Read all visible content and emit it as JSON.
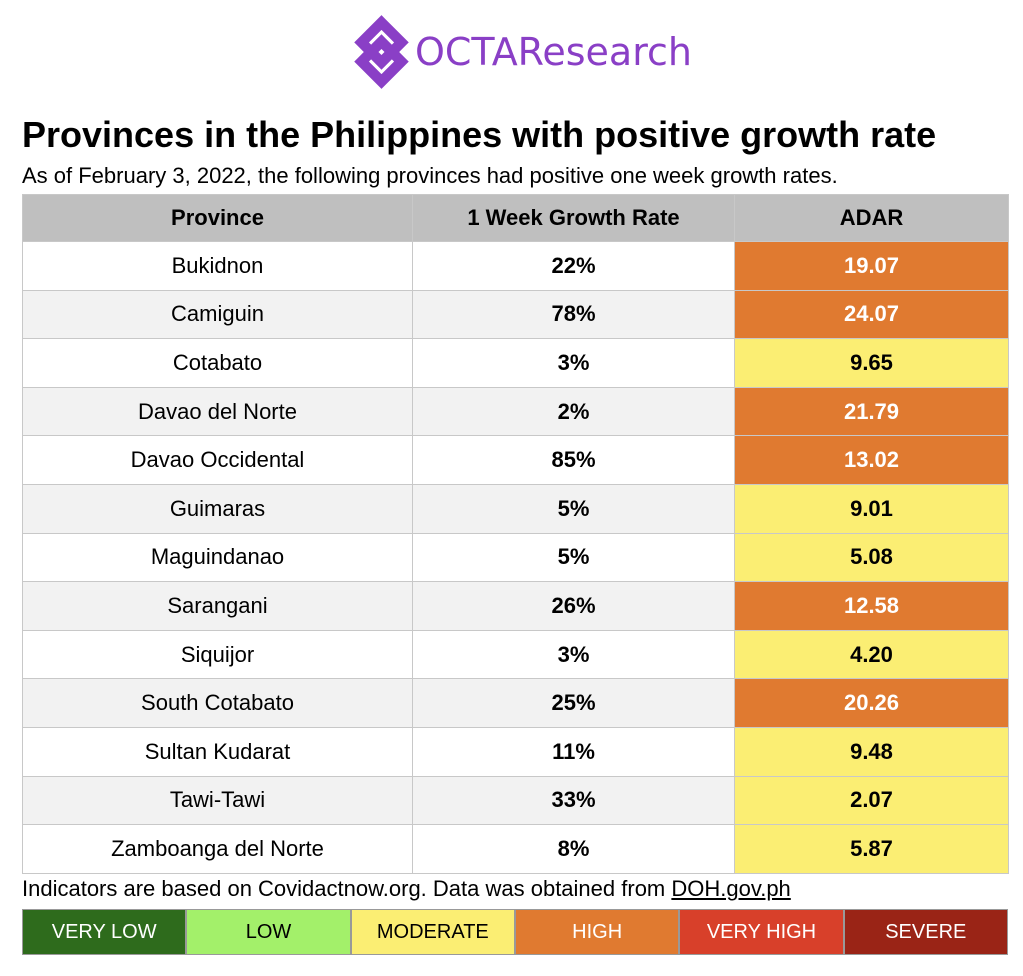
{
  "logo": {
    "text": "OCTAResearch"
  },
  "title": "Provinces in the Philippines with positive growth rate",
  "subtitle": "As of February 3, 2022, the following provinces had positive one week growth rates.",
  "colors": {
    "high": "#e07a30",
    "moderate": "#fbee73",
    "brand": "#8a3fc6"
  },
  "chart_data": {
    "type": "table",
    "columns": [
      "Province",
      "1 Week Growth Rate",
      "ADAR"
    ],
    "rows": [
      {
        "province": "Bukidnon",
        "growth": "22%",
        "adar": "19.07",
        "level": "high"
      },
      {
        "province": "Camiguin",
        "growth": "78%",
        "adar": "24.07",
        "level": "high"
      },
      {
        "province": "Cotabato",
        "growth": "3%",
        "adar": "9.65",
        "level": "moderate"
      },
      {
        "province": "Davao del Norte",
        "growth": "2%",
        "adar": "21.79",
        "level": "high"
      },
      {
        "province": "Davao Occidental",
        "growth": "85%",
        "adar": "13.02",
        "level": "high"
      },
      {
        "province": "Guimaras",
        "growth": "5%",
        "adar": "9.01",
        "level": "moderate"
      },
      {
        "province": "Maguindanao",
        "growth": "5%",
        "adar": "5.08",
        "level": "moderate"
      },
      {
        "province": "Sarangani",
        "growth": "26%",
        "adar": "12.58",
        "level": "high"
      },
      {
        "province": "Siquijor",
        "growth": "3%",
        "adar": "4.20",
        "level": "moderate"
      },
      {
        "province": "South Cotabato",
        "growth": "25%",
        "adar": "20.26",
        "level": "high"
      },
      {
        "province": "Sultan Kudarat",
        "growth": "11%",
        "adar": "9.48",
        "level": "moderate"
      },
      {
        "province": "Tawi-Tawi",
        "growth": "33%",
        "adar": "2.07",
        "level": "moderate"
      },
      {
        "province": "Zamboanga del Norte",
        "growth": "8%",
        "adar": "5.87",
        "level": "moderate"
      }
    ]
  },
  "footnote": {
    "text": "Indicators are based on Covidactnow.org. Data was obtained from ",
    "link": "DOH.gov.ph"
  },
  "legend": [
    {
      "label": "VERY LOW",
      "bg": "#2e6b1c",
      "fg": "#ffffff"
    },
    {
      "label": "LOW",
      "bg": "#a3f06a",
      "fg": "#000000"
    },
    {
      "label": "MODERATE",
      "bg": "#fbee73",
      "fg": "#000000"
    },
    {
      "label": "HIGH",
      "bg": "#e07a30",
      "fg": "#ffffff"
    },
    {
      "label": "VERY HIGH",
      "bg": "#d8402a",
      "fg": "#ffffff"
    },
    {
      "label": "SEVERE",
      "bg": "#9a2416",
      "fg": "#ffffff"
    }
  ]
}
